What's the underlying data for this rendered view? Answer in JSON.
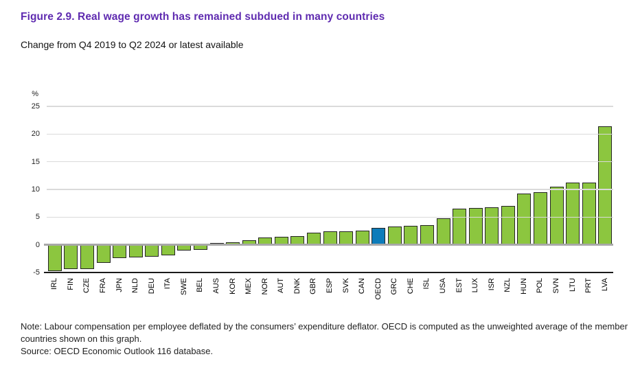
{
  "header": {
    "title": "Figure 2.9. Real wage growth has remained subdued in many countries",
    "subtitle": "Change from Q4 2019 to Q2 2024 or latest available"
  },
  "chart_data": {
    "type": "bar",
    "unit_label": "%",
    "categories": [
      "IRL",
      "FIN",
      "CZE",
      "FRA",
      "JPN",
      "NLD",
      "DEU",
      "ITA",
      "SWE",
      "BEL",
      "AUS",
      "KOR",
      "MEX",
      "NOR",
      "AUT",
      "DNK",
      "GBR",
      "ESP",
      "SVK",
      "CAN",
      "OECD",
      "GRC",
      "CHE",
      "ISL",
      "USA",
      "EST",
      "LUX",
      "ISR",
      "NZL",
      "HUN",
      "POL",
      "SVN",
      "LTU",
      "PRT",
      "LVA"
    ],
    "values": [
      -4.7,
      -4.4,
      -4.4,
      -3.3,
      -2.4,
      -2.3,
      -2.1,
      -1.9,
      -1.0,
      -0.9,
      0.3,
      0.5,
      0.8,
      1.3,
      1.4,
      1.6,
      2.2,
      2.4,
      2.5,
      2.6,
      3.0,
      3.3,
      3.4,
      3.5,
      4.8,
      6.5,
      6.7,
      6.8,
      7.0,
      9.3,
      9.5,
      10.5,
      11.2,
      11.2,
      21.4
    ],
    "highlight_category": "OECD",
    "ylim": [
      -5,
      25
    ],
    "yticks": [
      25,
      20,
      15,
      10,
      5,
      0,
      -5
    ],
    "grid": true,
    "legend": false,
    "colors": {
      "bar": "#8cc63f",
      "bar_border": "#232323",
      "highlight": "#0d7cba",
      "gridline": "#dadada",
      "zero_line": "#a8a8a8",
      "axis_line": "#1a1a1a",
      "title": "#5F2BB0"
    }
  },
  "footer": {
    "note": "Note: Labour compensation per employee deflated by the consumers’ expenditure deflator. OECD is computed as the unweighted average of the member countries shown on this graph.",
    "source": "Source: OECD Economic Outlook 116 database."
  }
}
